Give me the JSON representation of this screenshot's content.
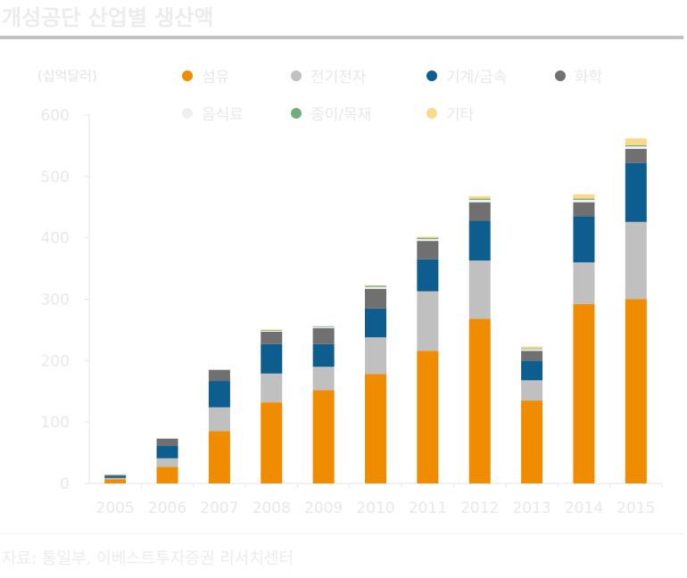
{
  "title": "개성공단 산업별 생산액",
  "source": "자료:  통일부, 이베스트투자증권 리서치센터",
  "chart_data": {
    "type": "bar",
    "stacked": true,
    "unit_label": "(십억달러)",
    "categories": [
      "2005",
      "2006",
      "2007",
      "2008",
      "2009",
      "2010",
      "2011",
      "2012",
      "2013",
      "2014",
      "2015"
    ],
    "series": [
      {
        "name": "섬유",
        "color": "#f08c00",
        "values": [
          7,
          27,
          85,
          132,
          152,
          178,
          216,
          268,
          135,
          292,
          300
        ]
      },
      {
        "name": "전기전자",
        "color": "#c0c0c0",
        "values": [
          2,
          14,
          39,
          47,
          38,
          60,
          97,
          95,
          33,
          68,
          126
        ]
      },
      {
        "name": "기계/금속",
        "color": "#0d5e8f",
        "values": [
          3,
          20,
          43,
          48,
          37,
          47,
          52,
          65,
          32,
          75,
          96
        ]
      },
      {
        "name": "화학",
        "color": "#707070",
        "values": [
          2,
          12,
          18,
          20,
          26,
          32,
          30,
          30,
          16,
          23,
          23
        ]
      },
      {
        "name": "음식료",
        "color": "#f0f0f0",
        "values": [
          0,
          0,
          0,
          2,
          2,
          3,
          3,
          4,
          3,
          4,
          4
        ]
      },
      {
        "name": "종이/목재",
        "color": "#6fae7a",
        "values": [
          0,
          0,
          0,
          1,
          1,
          2,
          2,
          2,
          1,
          2,
          2
        ]
      },
      {
        "name": "기타",
        "color": "#fbd98a",
        "values": [
          0,
          0,
          0,
          1,
          0,
          1,
          2,
          4,
          3,
          7,
          11
        ]
      }
    ],
    "ylim": [
      0,
      600
    ],
    "yticks": [
      0,
      100,
      200,
      300,
      400,
      500,
      600
    ],
    "legend_position": "top",
    "grid": false,
    "colors": {
      "axis": "#e6e6e6",
      "tick_text": "#e8e8e8"
    }
  }
}
